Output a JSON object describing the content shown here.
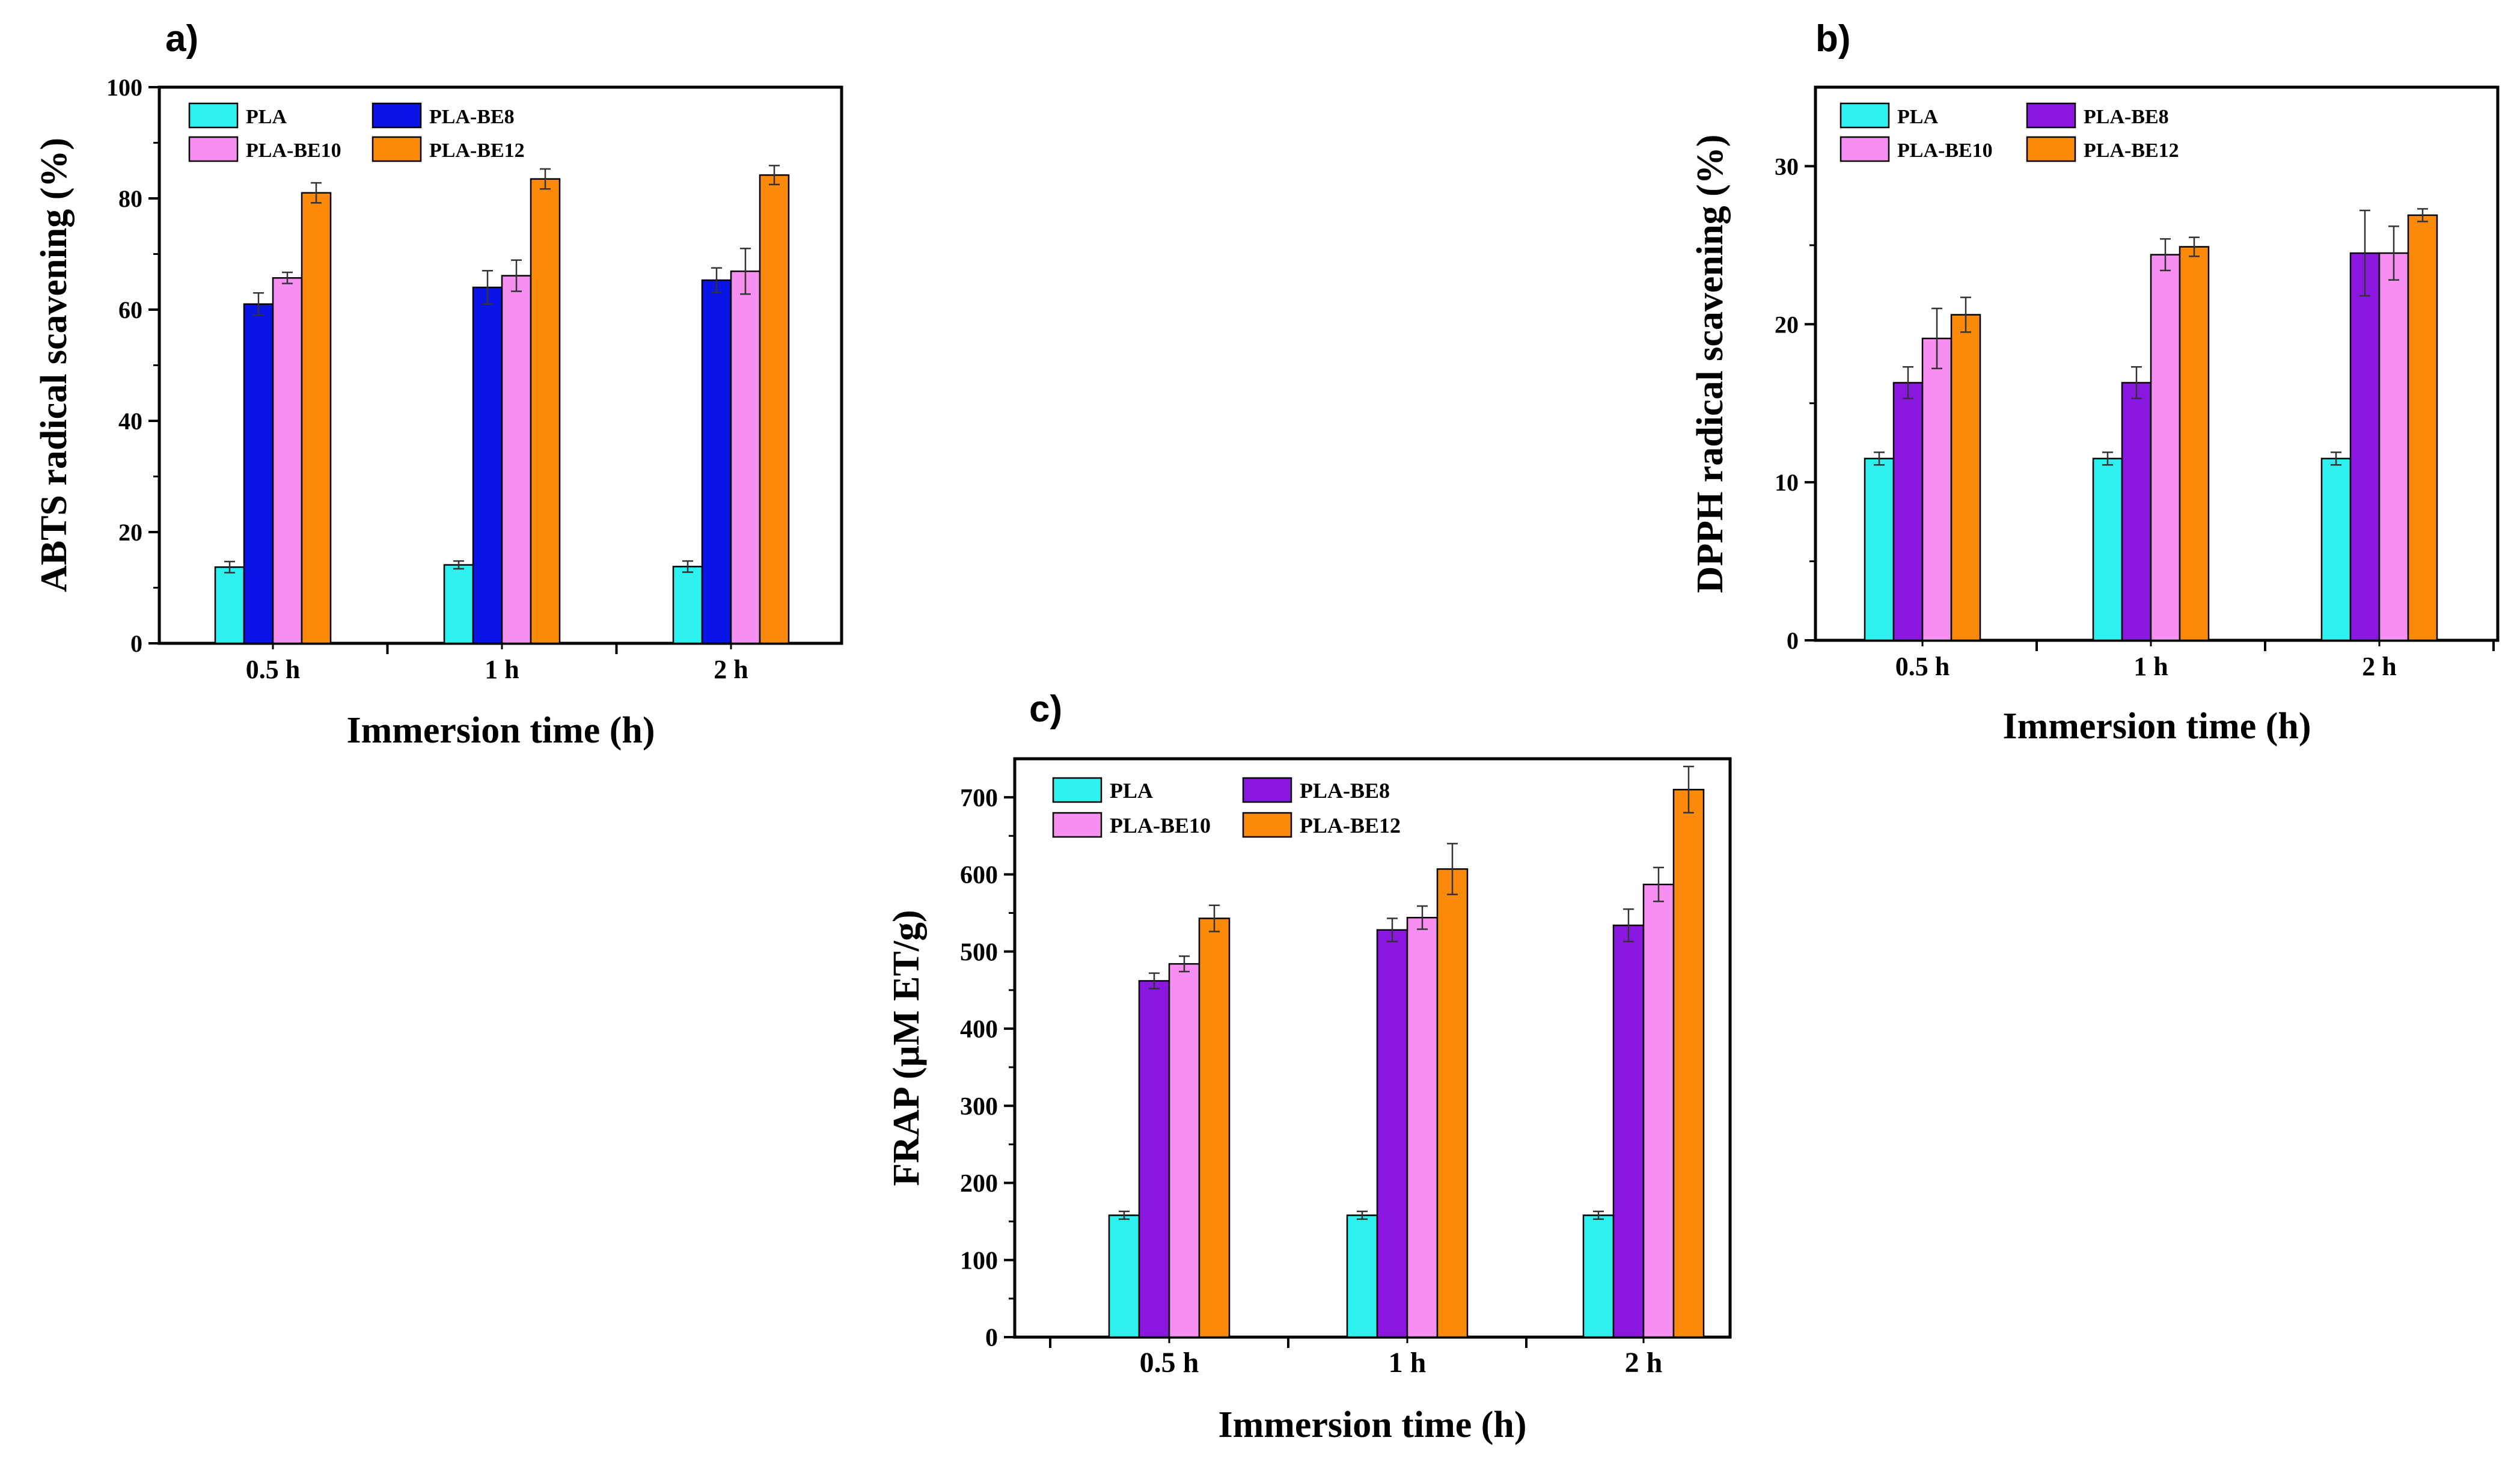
{
  "colors": {
    "PLA": "#2ef0ef",
    "PLA-BE8_a": "#0a14e6",
    "PLA-BE8": "#8a17e0",
    "PLA-BE10": "#f78ef2",
    "PLA-BE12": "#fb8a0a",
    "axis": "#000000"
  },
  "chart_data": [
    {
      "id": "a",
      "type": "bar",
      "panel_label": "a)",
      "title": "",
      "xlabel": "Immersion time (h)",
      "ylabel": "ABTS radical scavening (%)",
      "categories": [
        "0.5 h",
        "1 h",
        "2 h"
      ],
      "ylim": [
        0,
        100
      ],
      "yticks": [
        0,
        20,
        40,
        60,
        80,
        100
      ],
      "yticklabels": [
        "0",
        "20",
        "40",
        "60",
        "80",
        "100"
      ],
      "legend_position": "top-left",
      "series": [
        {
          "name": "PLA",
          "color_key": "PLA",
          "values": [
            13.7,
            14.1,
            13.8
          ],
          "errors": [
            1.0,
            0.7,
            1.0
          ]
        },
        {
          "name": "PLA-BE8",
          "color_key": "PLA-BE8_a",
          "values": [
            61.0,
            64.0,
            65.3
          ],
          "errors": [
            2.0,
            3.0,
            2.2
          ]
        },
        {
          "name": "PLA-BE10",
          "color_key": "PLA-BE10",
          "values": [
            65.7,
            66.1,
            66.9
          ],
          "errors": [
            1.0,
            2.8,
            4.1
          ]
        },
        {
          "name": "PLA-BE12",
          "color_key": "PLA-BE12",
          "values": [
            81.0,
            83.5,
            84.2
          ],
          "errors": [
            1.8,
            1.8,
            1.7
          ]
        }
      ]
    },
    {
      "id": "b",
      "type": "bar",
      "panel_label": "b)",
      "title": "",
      "xlabel": "Immersion time (h)",
      "ylabel": "DPPH radical scavening (%)",
      "categories": [
        "0.5 h",
        "1 h",
        "2 h"
      ],
      "ylim": [
        0,
        35
      ],
      "yticks": [
        0,
        10,
        20,
        30
      ],
      "yticklabels": [
        "0",
        "10",
        "20",
        "30"
      ],
      "legend_position": "top-left",
      "series": [
        {
          "name": "PLA",
          "color_key": "PLA",
          "values": [
            11.5,
            11.5,
            11.5
          ],
          "errors": [
            0.4,
            0.4,
            0.4
          ]
        },
        {
          "name": "PLA-BE8",
          "color_key": "PLA-BE8",
          "values": [
            16.3,
            16.3,
            24.5
          ],
          "errors": [
            1.0,
            1.0,
            2.7
          ]
        },
        {
          "name": "PLA-BE10",
          "color_key": "PLA-BE10",
          "values": [
            19.1,
            24.4,
            24.5
          ],
          "errors": [
            1.9,
            1.0,
            1.7
          ]
        },
        {
          "name": "PLA-BE12",
          "color_key": "PLA-BE12",
          "values": [
            20.6,
            24.9,
            26.9
          ],
          "errors": [
            1.1,
            0.6,
            0.4
          ]
        }
      ]
    },
    {
      "id": "c",
      "type": "bar",
      "panel_label": "c)",
      "title": "",
      "xlabel": "Immersion time (h)",
      "ylabel": "FRAP (µM ET/g)",
      "categories": [
        "0.5 h",
        "1 h",
        "2 h"
      ],
      "ylim": [
        0,
        750
      ],
      "yticks": [
        0,
        100,
        200,
        300,
        400,
        500,
        600,
        700
      ],
      "yticklabels": [
        "0",
        "100",
        "200",
        "300",
        "400",
        "500",
        "600",
        "700"
      ],
      "legend_position": "top-left",
      "series": [
        {
          "name": "PLA",
          "color_key": "PLA",
          "values": [
            158,
            158,
            158
          ],
          "errors": [
            5,
            5,
            5
          ]
        },
        {
          "name": "PLA-BE8",
          "color_key": "PLA-BE8",
          "values": [
            462,
            528,
            534
          ],
          "errors": [
            10,
            15,
            21
          ]
        },
        {
          "name": "PLA-BE10",
          "color_key": "PLA-BE10",
          "values": [
            484,
            544,
            587
          ],
          "errors": [
            10,
            15,
            22
          ]
        },
        {
          "name": "PLA-BE12",
          "color_key": "PLA-BE12",
          "values": [
            543,
            607,
            710
          ],
          "errors": [
            17,
            33,
            30
          ]
        }
      ]
    }
  ]
}
